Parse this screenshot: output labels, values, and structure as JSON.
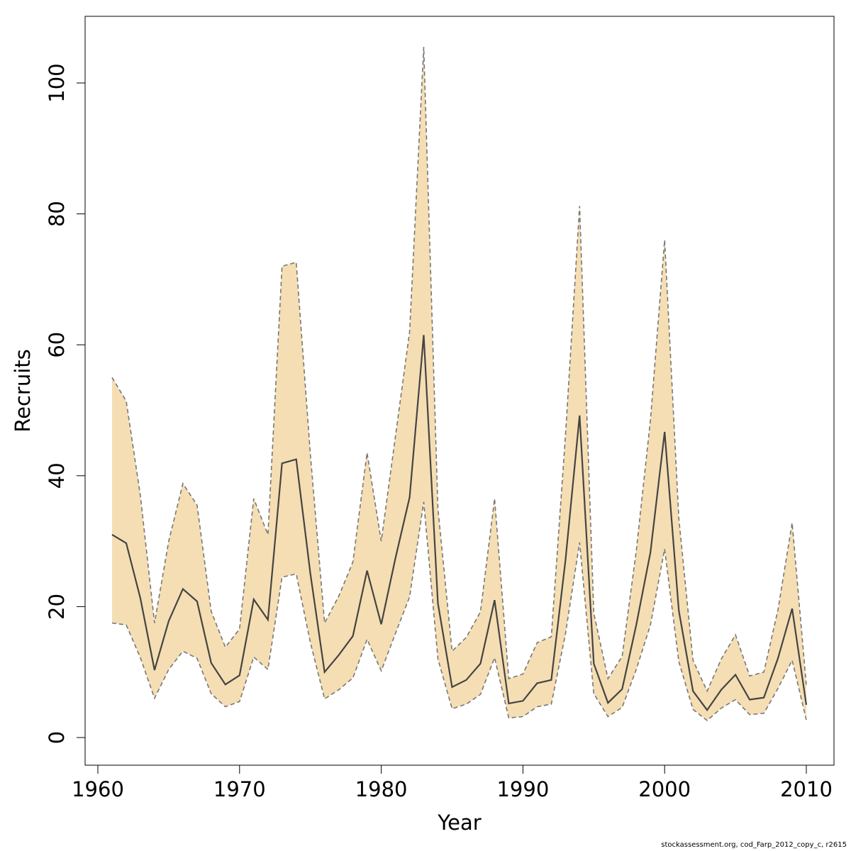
{
  "chart_data": {
    "type": "area",
    "xlabel": "Year",
    "ylabel": "Recruits",
    "xlim": [
      1960,
      2010
    ],
    "ylim": [
      0,
      110
    ],
    "x_ticks": [
      1960,
      1970,
      1980,
      1990,
      2000,
      2010
    ],
    "y_ticks": [
      0,
      20,
      40,
      60,
      80,
      100
    ],
    "grid": false,
    "legend": "none",
    "band_color": "#F5DEB3",
    "line_color": "#444444",
    "bound_color": "#777777",
    "x": [
      1961,
      1962,
      1963,
      1964,
      1965,
      1966,
      1967,
      1968,
      1969,
      1970,
      1971,
      1972,
      1973,
      1974,
      1975,
      1976,
      1977,
      1978,
      1979,
      1980,
      1981,
      1982,
      1983,
      1984,
      1985,
      1986,
      1987,
      1988,
      1989,
      1990,
      1991,
      1992,
      1993,
      1994,
      1995,
      1996,
      1997,
      1998,
      1999,
      2000,
      2001,
      2002,
      2003,
      2004,
      2005,
      2006,
      2007,
      2008,
      2009,
      2010
    ],
    "series": [
      {
        "role": "estimate",
        "values": [
          31,
          29.7,
          21.3,
          10.3,
          17.8,
          22.7,
          20.8,
          11.4,
          8.1,
          9.5,
          21.1,
          18,
          41.9,
          42.5,
          25,
          10,
          12.6,
          15.5,
          25.5,
          17.3,
          27.4,
          36.7,
          61.5,
          20.5,
          7.7,
          8.8,
          11.3,
          21,
          5.2,
          5.6,
          8.3,
          8.8,
          27,
          49.2,
          11.3,
          5.3,
          7.4,
          17.2,
          28.3,
          46.7,
          19.4,
          7.1,
          4.2,
          7.3,
          9.6,
          5.8,
          6.1,
          12.1,
          19.7,
          5
        ]
      },
      {
        "role": "upper",
        "values": [
          55,
          51.4,
          37,
          17.5,
          30,
          38.8,
          35.5,
          19.3,
          13.8,
          16.6,
          36.5,
          31,
          72,
          72.6,
          43.2,
          17.5,
          21.6,
          26.8,
          43.5,
          30,
          46,
          62,
          105.5,
          35,
          13.2,
          15.3,
          19.2,
          36.5,
          9,
          9.7,
          14.5,
          15.4,
          46,
          81.2,
          19,
          9,
          12.4,
          28.5,
          48.5,
          76,
          33.5,
          11.8,
          7.1,
          12,
          15.7,
          9.4,
          10,
          19.5,
          32.8,
          8
        ]
      },
      {
        "role": "lower",
        "values": [
          17.5,
          17.2,
          12.2,
          6,
          10.4,
          13.2,
          12.1,
          6.7,
          4.7,
          5.5,
          12.3,
          10.4,
          24.5,
          25,
          14.5,
          5.9,
          7.3,
          9.1,
          15,
          10.2,
          15.9,
          21.5,
          36,
          12,
          4.4,
          5.1,
          6.6,
          12.2,
          3,
          3.2,
          4.7,
          5.1,
          15.8,
          29.8,
          6.7,
          3.2,
          4.6,
          10.4,
          17.2,
          28.8,
          11.6,
          4.3,
          2.6,
          4.5,
          5.8,
          3.5,
          3.7,
          7.5,
          11.8,
          2.7
        ]
      }
    ]
  },
  "footer": "stockassessment.org, cod_Farp_2012_copy_c, r2615"
}
